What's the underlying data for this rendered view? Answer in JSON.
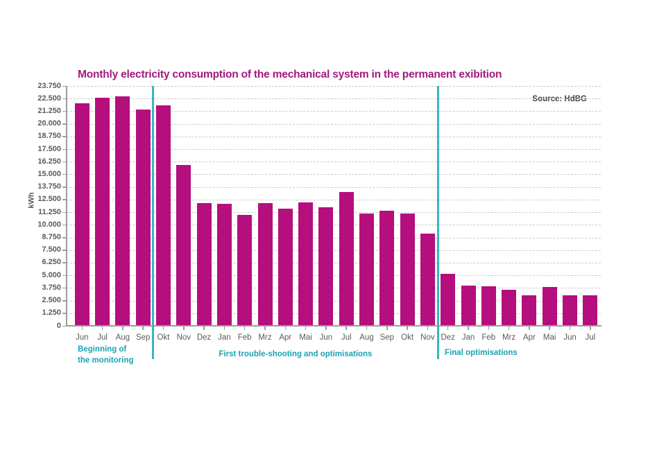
{
  "chart_data": {
    "type": "bar",
    "title": "Monthly electricity consumption of the mechanical system in the permanent exibition",
    "source": "Source: HdBG",
    "ylabel": "kWh",
    "ylim": [
      0,
      23750
    ],
    "ytick_interval": 1250,
    "ytick_format": "german-thousands-dot",
    "grid": "horizontal-dashed",
    "legend": "none",
    "categories": [
      "Jun",
      "Jul",
      "Aug",
      "Sep",
      "Okt",
      "Nov",
      "Dez",
      "Jan",
      "Feb",
      "Mrz",
      "Apr",
      "Mai",
      "Jun",
      "Jul",
      "Aug",
      "Sep",
      "Okt",
      "Nov",
      "Dez",
      "Jan",
      "Feb",
      "Mrz",
      "Apr",
      "Mai",
      "Jun",
      "Jul"
    ],
    "values": [
      22000,
      22550,
      22700,
      21400,
      21800,
      15900,
      12150,
      12100,
      10950,
      12150,
      11600,
      12250,
      11750,
      13250,
      11150,
      11400,
      11150,
      9100,
      5150,
      3950,
      3900,
      3550,
      3050,
      3850,
      3000,
      3000
    ],
    "separators_after_index": [
      3,
      17
    ],
    "phases": [
      {
        "label": "Beginning of\nthe monitoring",
        "align": "left"
      },
      {
        "label": "First trouble-shooting and optimisations",
        "align": "center"
      },
      {
        "label": "Final optimisations",
        "align": "left"
      }
    ]
  },
  "colors": {
    "bar": "#b50e7d",
    "title": "#a2197d",
    "separator": "#3ab5c0",
    "annotation": "#18a3b5",
    "axis_text": "#595959",
    "source_text": "#404040",
    "gridline": "#c9c9c9",
    "axis_line": "#9c9c9c"
  }
}
